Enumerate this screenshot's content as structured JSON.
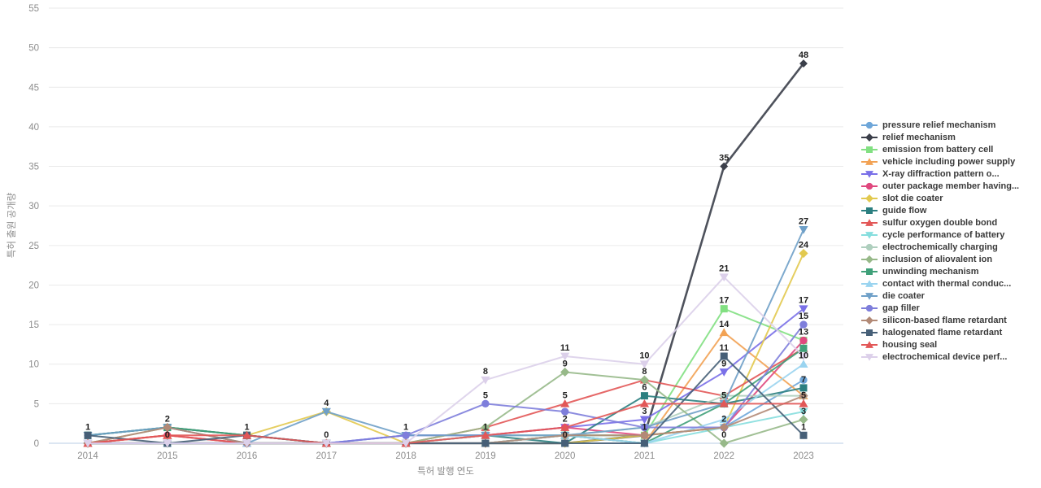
{
  "chart_data": {
    "type": "line",
    "title": "",
    "xlabel": "특허 발행 연도",
    "ylabel": "특허 출원 공개량",
    "x": [
      2014,
      2015,
      2016,
      2017,
      2018,
      2019,
      2020,
      2021,
      2022,
      2023
    ],
    "ylim": [
      0,
      55
    ],
    "yticks": [
      0,
      5,
      10,
      15,
      20,
      25,
      30,
      35,
      40,
      45,
      50,
      55
    ],
    "grid": "horizontal",
    "legend_position": "right",
    "series": [
      {
        "name": "pressure relief mechanism",
        "color": "#6EA6D9",
        "marker": "circle",
        "values": [
          1,
          2,
          1,
          0,
          1,
          1,
          1,
          1,
          2,
          8
        ]
      },
      {
        "name": "relief mechanism",
        "color": "#3B3F4A",
        "marker": "diamond",
        "values": [
          0,
          0,
          0,
          0,
          0,
          0,
          0,
          1,
          35,
          48
        ]
      },
      {
        "name": "emission from battery cell",
        "color": "#82E082",
        "marker": "square",
        "values": [
          0,
          0,
          0,
          0,
          0,
          0,
          1,
          1,
          17,
          13
        ]
      },
      {
        "name": "vehicle including power supply",
        "color": "#F2A254",
        "marker": "triangle-up",
        "values": [
          0,
          1,
          0,
          0,
          0,
          0,
          1,
          0,
          14,
          6
        ]
      },
      {
        "name": "X-ray diffraction pattern o...",
        "color": "#7A70E8",
        "marker": "triangle-down",
        "values": [
          0,
          0,
          0,
          0,
          1,
          1,
          2,
          3,
          9,
          17
        ]
      },
      {
        "name": "outer package member having...",
        "color": "#E0487E",
        "marker": "circle",
        "values": [
          0,
          1,
          0,
          0,
          0,
          1,
          2,
          1,
          2,
          13
        ]
      },
      {
        "name": "slot die coater",
        "color": "#E2C94F",
        "marker": "diamond",
        "values": [
          0,
          2,
          1,
          4,
          0,
          0,
          0,
          1,
          2,
          24
        ]
      },
      {
        "name": "guide flow",
        "color": "#2B7F80",
        "marker": "square",
        "values": [
          1,
          2,
          1,
          0,
          0,
          1,
          0,
          6,
          5,
          7
        ]
      },
      {
        "name": "sulfur oxygen double bond",
        "color": "#E25757",
        "marker": "triangle-up",
        "values": [
          0,
          1,
          0,
          0,
          0,
          2,
          5,
          8,
          6,
          12
        ]
      },
      {
        "name": "cycle performance of battery",
        "color": "#86DEDE",
        "marker": "triangle-down",
        "values": [
          0,
          0,
          0,
          0,
          0,
          1,
          1,
          0,
          2,
          4
        ]
      },
      {
        "name": "electrochemically charging",
        "color": "#AFCFBE",
        "marker": "circle",
        "values": [
          0,
          2,
          0,
          0,
          0,
          1,
          1,
          2,
          6,
          6
        ]
      },
      {
        "name": "inclusion of aliovalent ion",
        "color": "#97B989",
        "marker": "diamond",
        "values": [
          0,
          0,
          0,
          0,
          0,
          2,
          9,
          8,
          0,
          3
        ]
      },
      {
        "name": "unwinding mechanism",
        "color": "#3FA079",
        "marker": "square",
        "values": [
          1,
          2,
          1,
          0,
          0,
          0,
          1,
          0,
          5,
          12
        ]
      },
      {
        "name": "contact with thermal conduc...",
        "color": "#9AD4F0",
        "marker": "triangle-up",
        "values": [
          0,
          0,
          0,
          0,
          0,
          0,
          1,
          0,
          3,
          10
        ]
      },
      {
        "name": "die coater",
        "color": "#6FA0C8",
        "marker": "triangle-down",
        "values": [
          1,
          2,
          0,
          4,
          1,
          1,
          1,
          2,
          5,
          27
        ]
      },
      {
        "name": "gap filler",
        "color": "#7E7EDB",
        "marker": "circle",
        "values": [
          0,
          0,
          0,
          0,
          1,
          5,
          4,
          2,
          2,
          15
        ]
      },
      {
        "name": "silicon-based flame retardant",
        "color": "#B28A77",
        "marker": "diamond",
        "values": [
          0,
          2,
          0,
          0,
          0,
          0,
          1,
          1,
          2,
          6
        ]
      },
      {
        "name": "halogenated flame retardant",
        "color": "#465F77",
        "marker": "square",
        "values": [
          1,
          0,
          1,
          0,
          0,
          0,
          0,
          0,
          11,
          1
        ]
      },
      {
        "name": "housing seal",
        "color": "#E25757",
        "marker": "triangle-up",
        "values": [
          0,
          1,
          1,
          0,
          0,
          1,
          2,
          5,
          5,
          5
        ]
      },
      {
        "name": "electrochemical device perf...",
        "color": "#DCD0EA",
        "marker": "triangle-down",
        "values": [
          0,
          0,
          0,
          0,
          0,
          8,
          11,
          10,
          21,
          11
        ]
      }
    ],
    "annotations": [
      {
        "year": 2014,
        "value": 1,
        "label": "1"
      },
      {
        "year": 2015,
        "value": 2,
        "label": "2"
      },
      {
        "year": 2015,
        "value": 0,
        "label": "0"
      },
      {
        "year": 2016,
        "value": 1,
        "label": "1"
      },
      {
        "year": 2017,
        "value": 4,
        "label": "4"
      },
      {
        "year": 2017,
        "value": 0,
        "label": "0"
      },
      {
        "year": 2018,
        "value": 1,
        "label": "1"
      },
      {
        "year": 2019,
        "value": 8,
        "label": "8"
      },
      {
        "year": 2019,
        "value": 5,
        "label": "5"
      },
      {
        "year": 2019,
        "value": 1,
        "label": "1"
      },
      {
        "year": 2020,
        "value": 11,
        "label": "11"
      },
      {
        "year": 2020,
        "value": 9,
        "label": "9"
      },
      {
        "year": 2020,
        "value": 5,
        "label": "5"
      },
      {
        "year": 2020,
        "value": 2,
        "label": "2"
      },
      {
        "year": 2020,
        "value": 0,
        "label": "0"
      },
      {
        "year": 2021,
        "value": 10,
        "label": "10"
      },
      {
        "year": 2021,
        "value": 8,
        "label": "8"
      },
      {
        "year": 2021,
        "value": 6,
        "label": "6"
      },
      {
        "year": 2021,
        "value": 3,
        "label": "3"
      },
      {
        "year": 2021,
        "value": 1,
        "label": "1"
      },
      {
        "year": 2022,
        "value": 35,
        "label": "35"
      },
      {
        "year": 2022,
        "value": 21,
        "label": "21"
      },
      {
        "year": 2022,
        "value": 17,
        "label": "17"
      },
      {
        "year": 2022,
        "value": 14,
        "label": "14"
      },
      {
        "year": 2022,
        "value": 11,
        "label": "11"
      },
      {
        "year": 2022,
        "value": 9,
        "label": "9"
      },
      {
        "year": 2022,
        "value": 5,
        "label": "5"
      },
      {
        "year": 2022,
        "value": 2,
        "label": "2"
      },
      {
        "year": 2022,
        "value": 0,
        "label": "0"
      },
      {
        "year": 2023,
        "value": 48,
        "label": "48"
      },
      {
        "year": 2023,
        "value": 27,
        "label": "27"
      },
      {
        "year": 2023,
        "value": 24,
        "label": "24"
      },
      {
        "year": 2023,
        "value": 17,
        "label": "17"
      },
      {
        "year": 2023,
        "value": 15,
        "label": "15"
      },
      {
        "year": 2023,
        "value": 13,
        "label": "13"
      },
      {
        "year": 2023,
        "value": 10,
        "label": "10"
      },
      {
        "year": 2023,
        "value": 7,
        "label": "7"
      },
      {
        "year": 2023,
        "value": 5,
        "label": "5"
      },
      {
        "year": 2023,
        "value": 3,
        "label": "3"
      },
      {
        "year": 2023,
        "value": 1,
        "label": "1"
      }
    ],
    "colors": {
      "grid": "#EAEAEA",
      "zero_line": "#B9CDE4",
      "tick_text": "#8C8C8C",
      "annotation_text": "#1F1F1F",
      "background": "#FFFFFF"
    }
  }
}
